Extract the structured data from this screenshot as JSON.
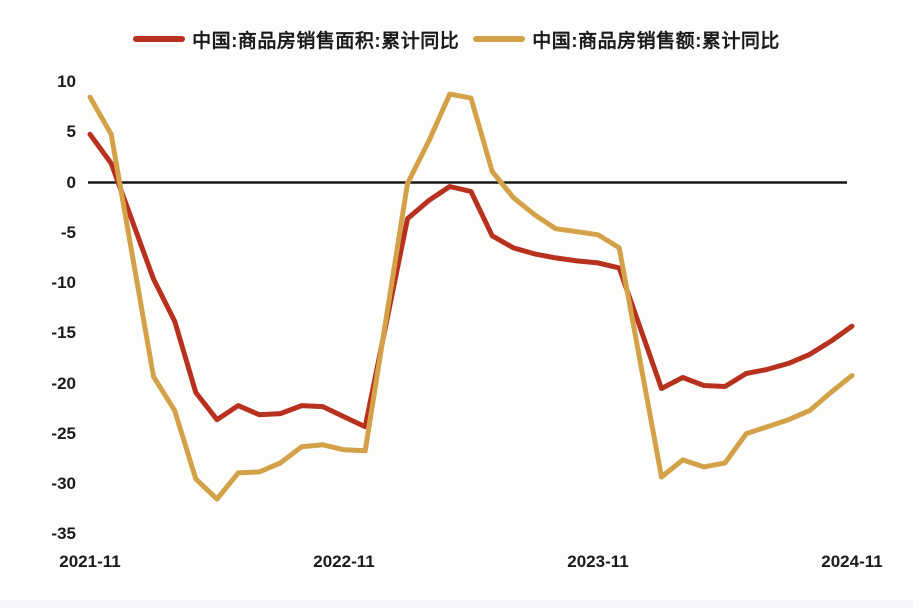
{
  "chart_data": {
    "type": "line",
    "title": "",
    "x": [
      "2021-11",
      "2021-12",
      "2022-02",
      "2022-03",
      "2022-04",
      "2022-05",
      "2022-06",
      "2022-07",
      "2022-08",
      "2022-09",
      "2022-10",
      "2022-11",
      "2022-12",
      "2023-02",
      "2023-03",
      "2023-04",
      "2023-05",
      "2023-06",
      "2023-07",
      "2023-08",
      "2023-09",
      "2023-10",
      "2023-11",
      "2023-12",
      "2024-02",
      "2024-03",
      "2024-04",
      "2024-05",
      "2024-06",
      "2024-07",
      "2024-08",
      "2024-09",
      "2024-10",
      "2024-11"
    ],
    "series": [
      {
        "name": "中国:商品房销售面积:累计同比",
        "color": "#b8311f",
        "values": [
          4.8,
          1.9,
          -9.6,
          -13.8,
          -20.9,
          -23.6,
          -22.2,
          -23.1,
          -23.0,
          -22.2,
          -22.3,
          -23.3,
          -24.3,
          -3.6,
          -1.8,
          -0.4,
          -0.9,
          -5.3,
          -6.5,
          -7.1,
          -7.5,
          -7.8,
          -8.0,
          -8.5,
          -20.5,
          -19.4,
          -20.2,
          -20.3,
          -19.0,
          -18.6,
          -18.0,
          -17.1,
          -15.8,
          -14.3
        ]
      },
      {
        "name": "中国:商品房销售额:累计同比",
        "color": "#d3a248",
        "values": [
          8.5,
          4.8,
          -19.3,
          -22.7,
          -29.5,
          -31.5,
          -28.9,
          -28.8,
          -27.9,
          -26.3,
          -26.1,
          -26.6,
          -26.7,
          -0.1,
          4.1,
          8.8,
          8.4,
          1.1,
          -1.5,
          -3.2,
          -4.6,
          -4.9,
          -5.2,
          -6.5,
          -29.3,
          -27.6,
          -28.3,
          -27.9,
          -25.0,
          -24.3,
          -23.6,
          -22.7,
          -20.9,
          -19.2
        ]
      }
    ],
    "y_ticks": [
      10,
      5,
      0,
      -5,
      -10,
      -15,
      -20,
      -25,
      -30,
      -35
    ],
    "x_ticks": [
      "2021-11",
      "2022-11",
      "2023-11",
      "2024-11"
    ],
    "ylim": [
      -35,
      10
    ],
    "xlabel": "",
    "ylabel": "",
    "grid": "none",
    "zero_baseline": true,
    "legend_position": "top-center",
    "colors": {
      "axis_line": "#1a1a1a",
      "text": "#1b1b1b",
      "background": "#fdfdfb"
    }
  }
}
